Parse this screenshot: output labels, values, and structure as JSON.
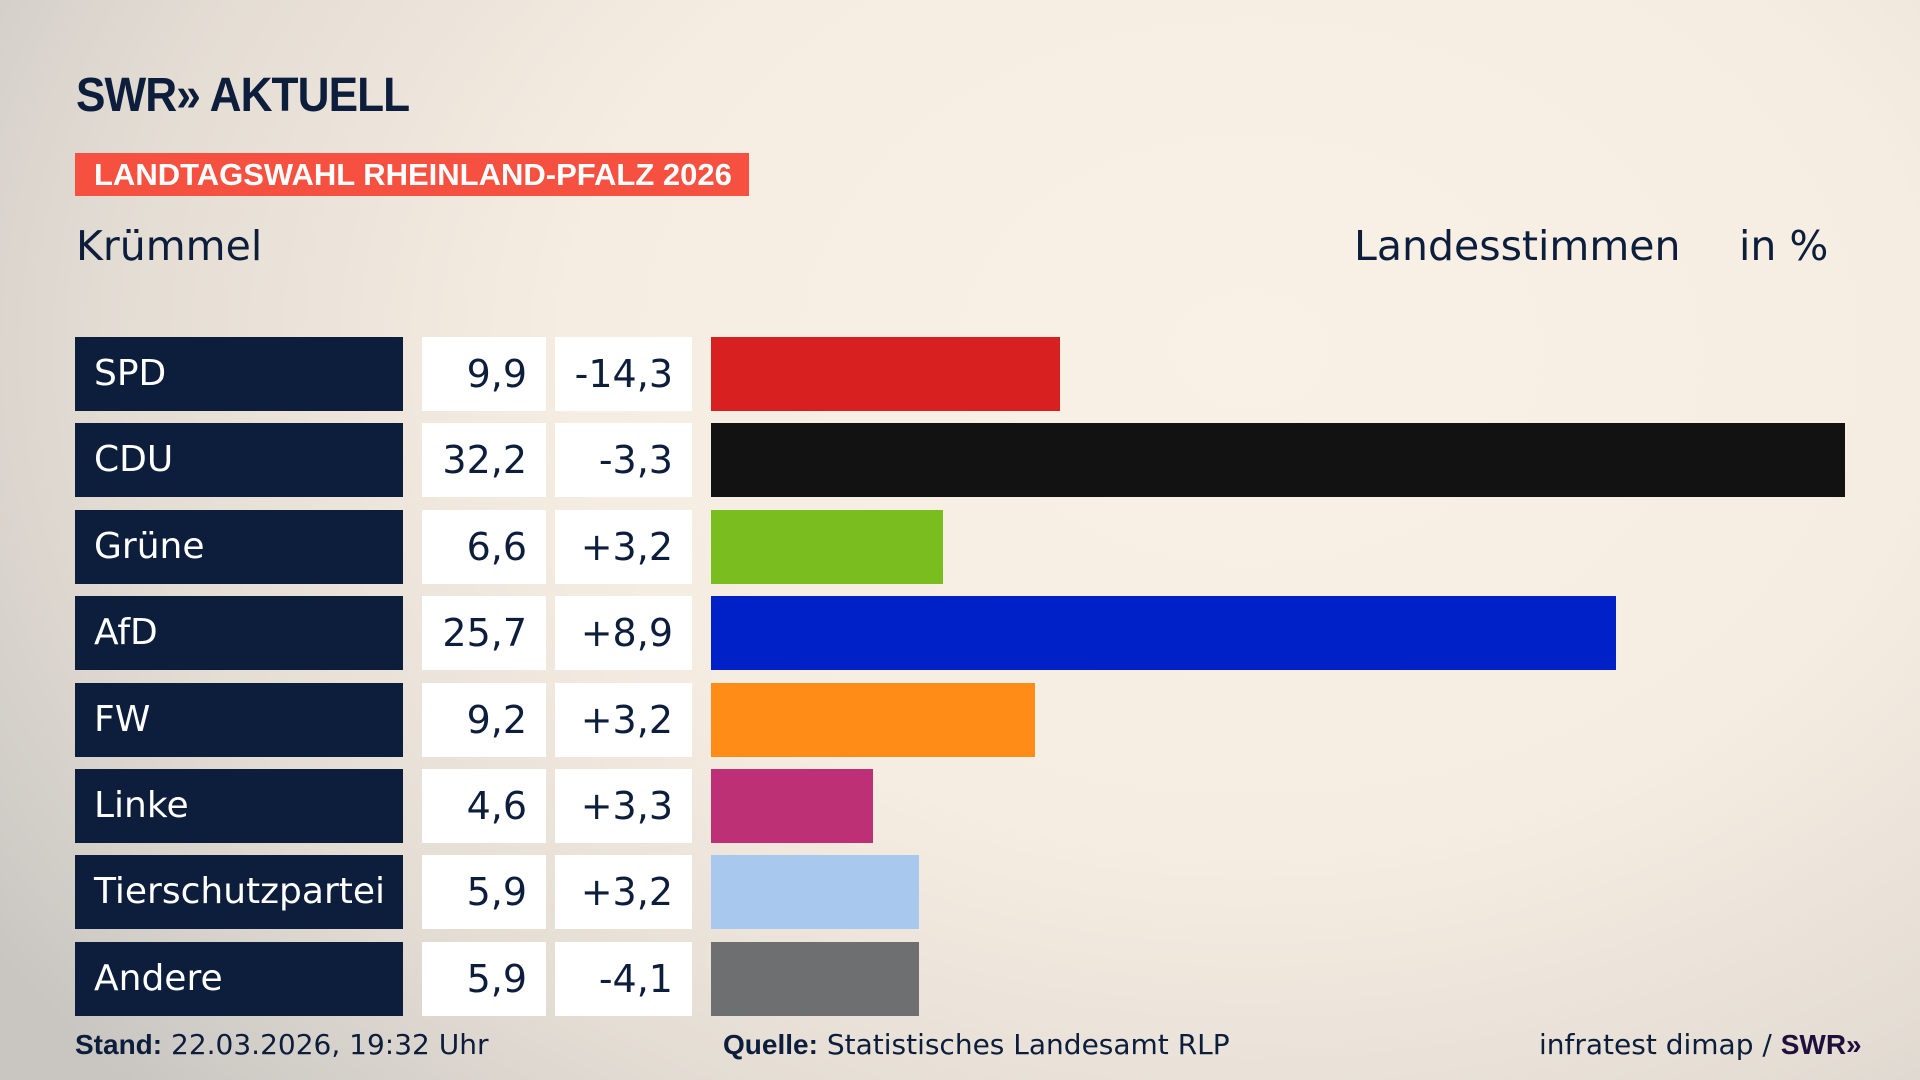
{
  "header": {
    "logo": "SWR» AKTUELL",
    "tag": "LANDTAGSWAHL RHEINLAND-PFALZ 2026",
    "region": "Krümmel",
    "measure": "Landesstimmen",
    "unit": "in %"
  },
  "chart_data": {
    "type": "bar",
    "orientation": "horizontal",
    "categories": [
      "SPD",
      "CDU",
      "Grüne",
      "AfD",
      "FW",
      "Linke",
      "Tierschutzpartei",
      "Andere"
    ],
    "values": [
      9.9,
      32.2,
      6.6,
      25.7,
      9.2,
      4.6,
      5.9,
      5.9
    ],
    "value_labels": [
      "9,9",
      "32,2",
      "6,6",
      "25,7",
      "9,2",
      "4,6",
      "5,9",
      "5,9"
    ],
    "changes": [
      "-14,3",
      "-3,3",
      "+3,2",
      "+8,9",
      "+3,2",
      "+3,3",
      "+3,2",
      "-4,1"
    ],
    "colors": [
      "#d92020",
      "#121212",
      "#79bd1e",
      "#0021c7",
      "#ff8c17",
      "#bd3075",
      "#a9c8ee",
      "#6e6f71"
    ],
    "xlim": [
      0,
      32.2
    ],
    "grid": false
  },
  "footer": {
    "stand_label": "Stand:",
    "stand_value": "22.03.2026, 19:32 Uhr",
    "source_label": "Quelle:",
    "source_value": "Statistisches Landesamt RLP",
    "credit": "infratest dimap / ",
    "credit_logo": "SWR»"
  }
}
